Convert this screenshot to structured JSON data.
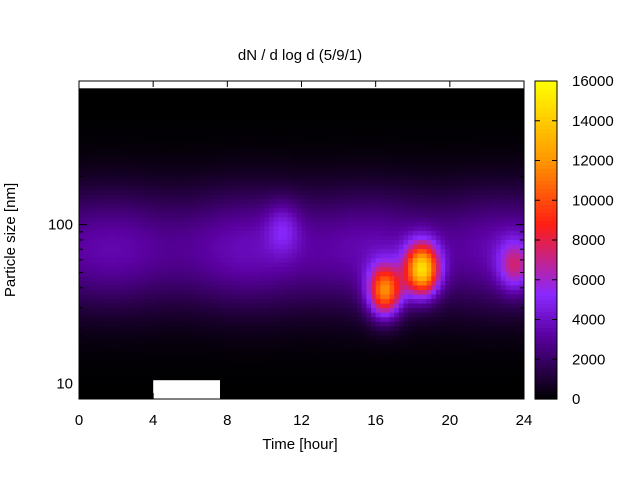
{
  "chart_data": {
    "type": "heatmap",
    "title": "dN / d log d (5/9/1)",
    "xlabel": "Time [hour]",
    "ylabel": "Particle size [nm]",
    "x_ticks": [
      "0",
      "4",
      "8",
      "12",
      "16",
      "20",
      "24"
    ],
    "x_tick_values": [
      0,
      4,
      8,
      12,
      16,
      20,
      24
    ],
    "xlim": [
      0,
      24
    ],
    "y_scale": "log",
    "y_ticks": [
      "10",
      "100"
    ],
    "y_tick_values": [
      10,
      100
    ],
    "ylim": [
      8,
      800
    ],
    "colorbar": {
      "ticks": [
        "0",
        "2000",
        "4000",
        "6000",
        "8000",
        "10000",
        "12000",
        "14000",
        "16000"
      ],
      "tick_values": [
        0,
        2000,
        4000,
        6000,
        8000,
        10000,
        12000,
        14000,
        16000
      ],
      "range": [
        0,
        16000
      ],
      "palette": [
        "#000000",
        "#5a00a0",
        "#8a28ff",
        "#ff1e14",
        "#ff9600",
        "#ffff00"
      ]
    },
    "features": [
      {
        "time_hour": 16.5,
        "size_nm": 38,
        "value": 12000
      },
      {
        "time_hour": 18.5,
        "size_nm": 52,
        "value": 14500
      },
      {
        "time_hour": 23.5,
        "size_nm": 55,
        "value": 6500
      },
      {
        "time_hour": 11.0,
        "size_nm": 95,
        "value": 4300
      }
    ],
    "background_band": {
      "size_nm": 70,
      "value": 3800
    },
    "missing_data": {
      "top_row_size_nm": 720,
      "bottom_gaps_hour": [
        [
          4.0,
          7.6
        ]
      ]
    }
  }
}
